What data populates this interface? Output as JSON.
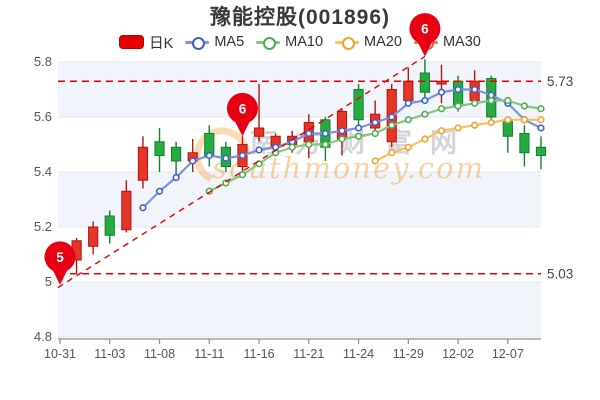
{
  "header": {
    "title": "豫能控股(001896)"
  },
  "legend": {
    "items": [
      {
        "label": "日K",
        "type": "rect",
        "color": "#e60000",
        "border": "#b30000"
      },
      {
        "label": "MA5",
        "type": "line",
        "color": "#7d92da",
        "ring": "#3d5fce"
      },
      {
        "label": "MA10",
        "type": "line",
        "color": "#85c77a",
        "ring": "#51ab51"
      },
      {
        "label": "MA20",
        "type": "line",
        "color": "#f6c45f",
        "ring": "#f0a32f"
      },
      {
        "label": "MA30",
        "type": "line",
        "color": "#f0785a",
        "ring": "#e55a3a"
      }
    ]
  },
  "watermark": {
    "cjk_text": "南方财富网",
    "latin_text": "southmoney.com",
    "cjk_color": "#aeb4c0",
    "latin_color": "#f3a64b"
  },
  "chart_data": {
    "type": "candlestick",
    "title": "豫能控股(001896)",
    "ylim": [
      4.8,
      5.8
    ],
    "y_ticks": [
      5.8,
      5.6,
      5.4,
      5.2,
      5.0,
      4.8
    ],
    "y_tick_labels": [
      "5.8",
      "5.6",
      "5.4",
      "5.2",
      "5",
      "4.8"
    ],
    "x_ticks": [
      {
        "label": "10-31",
        "index": 0
      },
      {
        "label": "11-03",
        "index": 3
      },
      {
        "label": "11-08",
        "index": 6
      },
      {
        "label": "11-11",
        "index": 9
      },
      {
        "label": "11-16",
        "index": 12
      },
      {
        "label": "11-21",
        "index": 15
      },
      {
        "label": "11-24",
        "index": 18
      },
      {
        "label": "11-29",
        "index": 21
      },
      {
        "label": "12-02",
        "index": 24
      },
      {
        "label": "12-07",
        "index": 27
      }
    ],
    "up_color": "#e53528",
    "up_border": "#b3170c",
    "down_color": "#26ab42",
    "down_border": "#13802c",
    "grid_color": "#e3e7f0",
    "band_color": "#f1f4fa",
    "ref_color": "#e60000",
    "balloon_color": "#e60012",
    "candles": [
      {
        "date": "10-31",
        "o": 5.04,
        "h": 5.12,
        "l": 5.03,
        "c": 5.1
      },
      {
        "date": "11-01",
        "o": 5.08,
        "h": 5.16,
        "l": 5.03,
        "c": 5.15
      },
      {
        "date": "11-02",
        "o": 5.13,
        "h": 5.22,
        "l": 5.1,
        "c": 5.2
      },
      {
        "date": "11-03",
        "o": 5.24,
        "h": 5.26,
        "l": 5.14,
        "c": 5.17
      },
      {
        "date": "11-04",
        "o": 5.19,
        "h": 5.37,
        "l": 5.18,
        "c": 5.33
      },
      {
        "date": "11-07",
        "o": 5.37,
        "h": 5.53,
        "l": 5.34,
        "c": 5.49
      },
      {
        "date": "11-08",
        "o": 5.51,
        "h": 5.56,
        "l": 5.4,
        "c": 5.46
      },
      {
        "date": "11-09",
        "o": 5.49,
        "h": 5.51,
        "l": 5.38,
        "c": 5.44
      },
      {
        "date": "11-10",
        "o": 5.44,
        "h": 5.52,
        "l": 5.4,
        "c": 5.47
      },
      {
        "date": "11-11",
        "o": 5.54,
        "h": 5.57,
        "l": 5.42,
        "c": 5.46
      },
      {
        "date": "11-14",
        "o": 5.49,
        "h": 5.51,
        "l": 5.4,
        "c": 5.42
      },
      {
        "date": "11-15",
        "o": 5.42,
        "h": 5.53,
        "l": 5.4,
        "c": 5.5
      },
      {
        "date": "11-16",
        "o": 5.53,
        "h": 5.72,
        "l": 5.51,
        "c": 5.56
      },
      {
        "date": "11-17",
        "o": 5.49,
        "h": 5.54,
        "l": 5.46,
        "c": 5.53
      },
      {
        "date": "11-18",
        "o": 5.5,
        "h": 5.55,
        "l": 5.47,
        "c": 5.53
      },
      {
        "date": "11-21",
        "o": 5.51,
        "h": 5.61,
        "l": 5.45,
        "c": 5.58
      },
      {
        "date": "11-22",
        "o": 5.59,
        "h": 5.6,
        "l": 5.44,
        "c": 5.49
      },
      {
        "date": "11-23",
        "o": 5.52,
        "h": 5.63,
        "l": 5.46,
        "c": 5.62
      },
      {
        "date": "11-24",
        "o": 5.7,
        "h": 5.72,
        "l": 5.57,
        "c": 5.59
      },
      {
        "date": "11-25",
        "o": 5.56,
        "h": 5.66,
        "l": 5.53,
        "c": 5.61
      },
      {
        "date": "11-28",
        "o": 5.51,
        "h": 5.72,
        "l": 5.49,
        "c": 5.7
      },
      {
        "date": "11-29",
        "o": 5.66,
        "h": 5.78,
        "l": 5.64,
        "c": 5.73
      },
      {
        "date": "11-30",
        "o": 5.76,
        "h": 5.81,
        "l": 5.66,
        "c": 5.69
      },
      {
        "date": "12-01",
        "o": 5.72,
        "h": 5.79,
        "l": 5.65,
        "c": 5.73
      },
      {
        "date": "12-02",
        "o": 5.73,
        "h": 5.75,
        "l": 5.62,
        "c": 5.64
      },
      {
        "date": "12-05",
        "o": 5.66,
        "h": 5.77,
        "l": 5.64,
        "c": 5.73
      },
      {
        "date": "12-06",
        "o": 5.74,
        "h": 5.75,
        "l": 5.58,
        "c": 5.6
      },
      {
        "date": "12-07",
        "o": 5.59,
        "h": 5.6,
        "l": 5.47,
        "c": 5.53
      },
      {
        "date": "12-08",
        "o": 5.54,
        "h": 5.57,
        "l": 5.42,
        "c": 5.47
      },
      {
        "date": "12-09",
        "o": 5.49,
        "h": 5.53,
        "l": 5.41,
        "c": 5.46
      }
    ],
    "series": [
      {
        "name": "MA5",
        "color": "#7d92da",
        "ring": "#3d5fce",
        "start_index": 5,
        "values": [
          5.27,
          5.33,
          5.38,
          5.44,
          5.46,
          5.45,
          5.46,
          5.48,
          5.49,
          5.51,
          5.54,
          5.54,
          5.55,
          5.56,
          5.58,
          5.6,
          5.65,
          5.66,
          5.69,
          5.7,
          5.7,
          5.68,
          5.65,
          5.59,
          5.56
        ]
      },
      {
        "name": "MA10",
        "color": "#85c77a",
        "ring": "#51ab51",
        "start_index": 9,
        "values": [
          5.33,
          5.36,
          5.39,
          5.43,
          5.47,
          5.49,
          5.5,
          5.5,
          5.52,
          5.53,
          5.54,
          5.57,
          5.59,
          5.61,
          5.63,
          5.64,
          5.65,
          5.66,
          5.66,
          5.64,
          5.63
        ]
      },
      {
        "name": "MA20",
        "color": "#f6c45f",
        "ring": "#f0a32f",
        "start_index": 19,
        "values": [
          5.44,
          5.47,
          5.49,
          5.52,
          5.55,
          5.56,
          5.57,
          5.58,
          5.59,
          5.59,
          5.59
        ]
      },
      {
        "name": "MA30",
        "color": "#f0785a",
        "ring": "#e55a3a",
        "start_index": 30,
        "values": []
      }
    ],
    "ref_lines": [
      {
        "value": 5.73,
        "label": "5.73"
      },
      {
        "value": 5.03,
        "label": "5.03"
      }
    ],
    "trend_line": {
      "from": {
        "index": 0,
        "value": 4.98
      },
      "to": {
        "index": 22,
        "value": 5.82
      }
    },
    "markers": [
      {
        "label": "5",
        "index": 0,
        "value": 4.99
      },
      {
        "label": "6",
        "index": 11,
        "value": 5.53
      },
      {
        "label": "6",
        "index": 22,
        "value": 5.82
      }
    ]
  }
}
